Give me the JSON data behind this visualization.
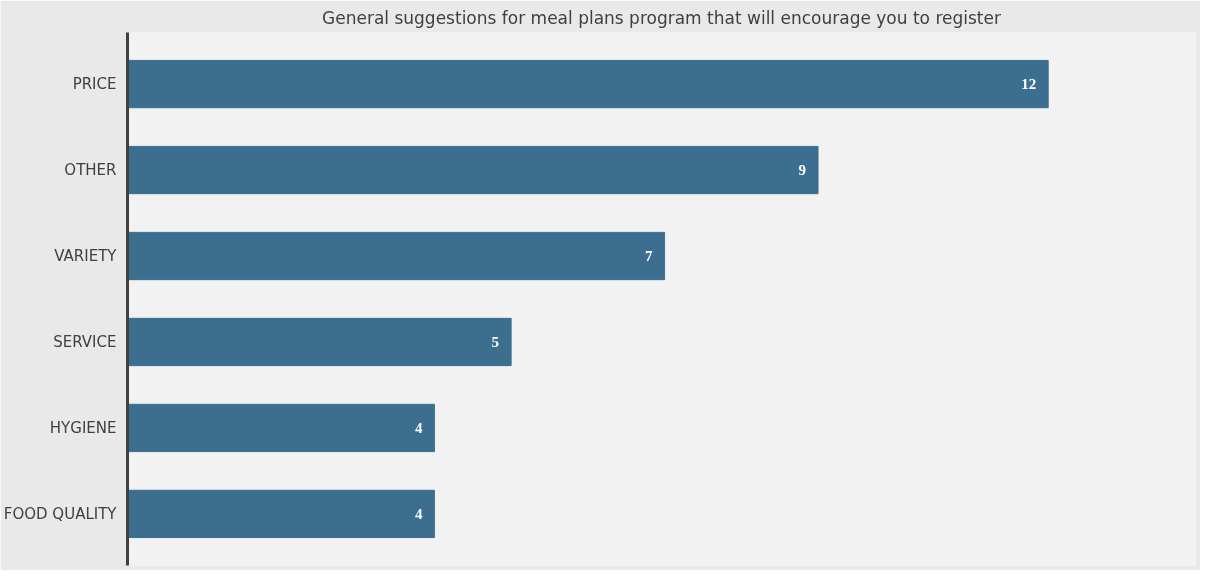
{
  "chart_data": {
    "type": "bar",
    "orientation": "horizontal",
    "title": "General suggestions for meal plans program that will encourage you to register",
    "categories": [
      "PRICE",
      "OTHER",
      "VARIETY",
      "SERVICE",
      "HYGIENE",
      "FOOD QUALITY"
    ],
    "values": [
      12,
      9,
      7,
      5,
      4,
      4
    ],
    "color": "#3b6e8f",
    "data_labels": true,
    "grid": false
  }
}
